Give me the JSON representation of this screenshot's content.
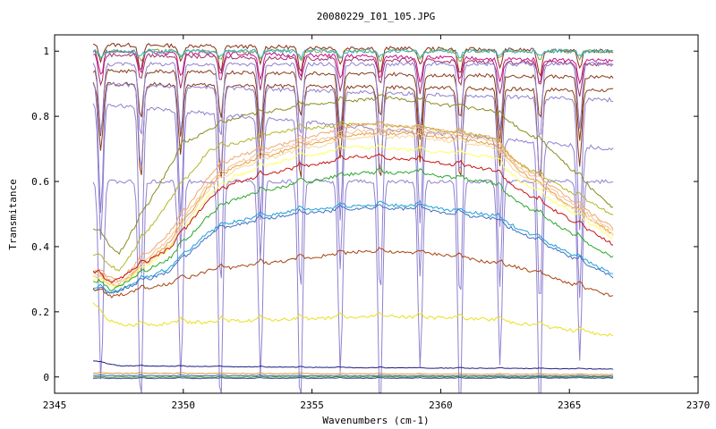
{
  "chart_data": {
    "type": "line",
    "title": "20080229_I01_105.JPG",
    "xlabel": "Wavenumbers (cm-1)",
    "ylabel": "Transmitance",
    "xlim": [
      2345,
      2370
    ],
    "ylim": [
      -0.05,
      1.05
    ],
    "x_ticks": [
      2345,
      2350,
      2355,
      2360,
      2365,
      2370
    ],
    "x_tick_labels": [
      "2345",
      "2350",
      "2355",
      "2360",
      "2365",
      "2370"
    ],
    "y_ticks": [
      0,
      0.2,
      0.4,
      0.6,
      0.8,
      1
    ],
    "y_tick_labels": [
      "0",
      "0.2",
      "0.4",
      "0.6",
      "0.8",
      "1"
    ],
    "grid": false,
    "legend": "none",
    "x_range": [
      2346.5,
      2366.7
    ],
    "series": [
      {
        "color": "#8b2e10",
        "kind": "co2",
        "base": 1.0,
        "depth": 0.08,
        "env": [
          [
            2346.5,
            1.02
          ],
          [
            2366.7,
            1.0
          ]
        ]
      },
      {
        "color": "#c8148c",
        "kind": "co2",
        "base": 0.99,
        "depth": 0.08,
        "env": [
          [
            2346.5,
            1.0
          ],
          [
            2366.7,
            0.97
          ]
        ]
      },
      {
        "color": "#a0306c",
        "kind": "co2",
        "base": 0.99,
        "depth": 0.1,
        "env": [
          [
            2346.5,
            0.99
          ],
          [
            2366.7,
            0.96
          ]
        ]
      },
      {
        "color": "#7fa24a",
        "kind": "co2",
        "base": 1.0,
        "depth": 0.03,
        "env": [
          [
            2346.5,
            1.0
          ],
          [
            2366.7,
            1.0
          ]
        ]
      },
      {
        "color": "#32b4c8",
        "kind": "co2",
        "base": 1.0,
        "depth": 0.02,
        "env": [
          [
            2346.5,
            1.0
          ],
          [
            2366.7,
            1.0
          ]
        ]
      },
      {
        "color": "#8b3a1a",
        "kind": "co2",
        "base": 0.96,
        "depth": 0.2,
        "env": [
          [
            2346.5,
            0.94
          ],
          [
            2366.7,
            0.92
          ]
        ]
      },
      {
        "color": "#8b3a1a",
        "kind": "co2",
        "base": 0.93,
        "depth": 0.3,
        "env": [
          [
            2346.5,
            0.9
          ],
          [
            2366.7,
            0.88
          ]
        ]
      },
      {
        "color": "#9080d0",
        "kind": "co2",
        "base": 0.97,
        "depth": 0.25,
        "env": [
          [
            2346.5,
            0.96
          ],
          [
            2366.7,
            0.96
          ]
        ]
      },
      {
        "color": "#9080d0",
        "kind": "co2",
        "base": 0.95,
        "depth": 0.4,
        "env": [
          [
            2346.5,
            0.9
          ],
          [
            2366.7,
            0.85
          ]
        ]
      },
      {
        "color": "#9080d0",
        "kind": "co2",
        "base": 0.92,
        "depth": 0.55,
        "env": [
          [
            2346.5,
            0.84
          ],
          [
            2366.7,
            0.7
          ]
        ]
      },
      {
        "color": "#9080d0",
        "kind": "co2",
        "base": 0.9,
        "depth": 0.75,
        "env": [
          [
            2346.5,
            0.6
          ],
          [
            2366.7,
            0.6
          ]
        ]
      },
      {
        "color": "#8a8a20",
        "kind": "env",
        "env": [
          [
            2346.5,
            0.46
          ],
          [
            2347.5,
            0.38
          ],
          [
            2350,
            0.72
          ],
          [
            2352,
            0.8
          ],
          [
            2355,
            0.84
          ],
          [
            2358,
            0.86
          ],
          [
            2362,
            0.82
          ],
          [
            2364,
            0.72
          ],
          [
            2366.7,
            0.52
          ]
        ]
      },
      {
        "color": "#b4b428",
        "kind": "env",
        "env": [
          [
            2346.5,
            0.38
          ],
          [
            2347.5,
            0.33
          ],
          [
            2349.5,
            0.55
          ],
          [
            2351,
            0.7
          ],
          [
            2354,
            0.76
          ],
          [
            2356.8,
            0.78
          ],
          [
            2359,
            0.77
          ],
          [
            2362,
            0.74
          ],
          [
            2363,
            0.66
          ],
          [
            2366.7,
            0.5
          ]
        ]
      },
      {
        "color": "#f0a870",
        "kind": "env",
        "env": [
          [
            2346.5,
            0.33
          ],
          [
            2347.5,
            0.3
          ],
          [
            2349.5,
            0.45
          ],
          [
            2351,
            0.62
          ],
          [
            2352,
            0.68
          ],
          [
            2354,
            0.72
          ],
          [
            2356.8,
            0.78
          ],
          [
            2359,
            0.77
          ],
          [
            2362,
            0.74
          ],
          [
            2363,
            0.66
          ],
          [
            2366.7,
            0.46
          ]
        ]
      },
      {
        "color": "#f4c090",
        "kind": "env",
        "env": [
          [
            2346.5,
            0.32
          ],
          [
            2347.5,
            0.29
          ],
          [
            2349.5,
            0.43
          ],
          [
            2351,
            0.6
          ],
          [
            2352,
            0.66
          ],
          [
            2354,
            0.71
          ],
          [
            2356.8,
            0.76
          ],
          [
            2359,
            0.76
          ],
          [
            2362,
            0.73
          ],
          [
            2363,
            0.65
          ],
          [
            2366.7,
            0.45
          ]
        ]
      },
      {
        "color": "#e8a040",
        "kind": "env",
        "env": [
          [
            2346.5,
            0.31
          ],
          [
            2347.5,
            0.28
          ],
          [
            2349.5,
            0.42
          ],
          [
            2351,
            0.59
          ],
          [
            2352,
            0.65
          ],
          [
            2354,
            0.7
          ],
          [
            2356.8,
            0.75
          ],
          [
            2359,
            0.75
          ],
          [
            2362,
            0.72
          ],
          [
            2363,
            0.64
          ],
          [
            2366.7,
            0.44
          ]
        ]
      },
      {
        "color": "#f7d8a0",
        "kind": "env",
        "env": [
          [
            2346.5,
            0.31
          ],
          [
            2347.5,
            0.28
          ],
          [
            2349.5,
            0.41
          ],
          [
            2351,
            0.58
          ],
          [
            2352,
            0.64
          ],
          [
            2354,
            0.69
          ],
          [
            2356.8,
            0.74
          ],
          [
            2359,
            0.74
          ],
          [
            2362,
            0.71
          ],
          [
            2363,
            0.63
          ],
          [
            2366.7,
            0.44
          ]
        ]
      },
      {
        "color": "#ffff60",
        "kind": "env",
        "env": [
          [
            2346.5,
            0.3
          ],
          [
            2347.5,
            0.28
          ],
          [
            2349.5,
            0.4
          ],
          [
            2351,
            0.56
          ],
          [
            2352,
            0.62
          ],
          [
            2354,
            0.67
          ],
          [
            2356.8,
            0.71
          ],
          [
            2359,
            0.7
          ],
          [
            2362,
            0.68
          ],
          [
            2363,
            0.61
          ],
          [
            2366.7,
            0.43
          ]
        ]
      },
      {
        "color": "#c81414",
        "kind": "env",
        "env": [
          [
            2346.5,
            0.33
          ],
          [
            2347.2,
            0.29
          ],
          [
            2349.5,
            0.4
          ],
          [
            2351,
            0.55
          ],
          [
            2352,
            0.6
          ],
          [
            2354,
            0.64
          ],
          [
            2356.8,
            0.68
          ],
          [
            2359,
            0.67
          ],
          [
            2362,
            0.64
          ],
          [
            2363,
            0.58
          ],
          [
            2366.7,
            0.41
          ]
        ]
      },
      {
        "color": "#2aa82a",
        "kind": "env",
        "env": [
          [
            2346.5,
            0.3
          ],
          [
            2347.2,
            0.27
          ],
          [
            2349.5,
            0.37
          ],
          [
            2351,
            0.5
          ],
          [
            2352,
            0.55
          ],
          [
            2354,
            0.59
          ],
          [
            2356.8,
            0.63
          ],
          [
            2359,
            0.63
          ],
          [
            2362,
            0.6
          ],
          [
            2363,
            0.54
          ],
          [
            2366.7,
            0.37
          ]
        ]
      },
      {
        "color": "#1ea0d8",
        "kind": "env",
        "env": [
          [
            2346.5,
            0.28
          ],
          [
            2347.2,
            0.26
          ],
          [
            2349.5,
            0.34
          ],
          [
            2351,
            0.45
          ],
          [
            2352,
            0.48
          ],
          [
            2354,
            0.51
          ],
          [
            2356.8,
            0.53
          ],
          [
            2359,
            0.53
          ],
          [
            2362,
            0.5
          ],
          [
            2363,
            0.46
          ],
          [
            2366.7,
            0.32
          ]
        ]
      },
      {
        "color": "#4070c0",
        "kind": "env",
        "env": [
          [
            2346.5,
            0.27
          ],
          [
            2347.2,
            0.26
          ],
          [
            2349.5,
            0.33
          ],
          [
            2351,
            0.44
          ],
          [
            2352,
            0.47
          ],
          [
            2354,
            0.5
          ],
          [
            2356.8,
            0.52
          ],
          [
            2359,
            0.52
          ],
          [
            2362,
            0.49
          ],
          [
            2363,
            0.45
          ],
          [
            2366.7,
            0.31
          ]
        ]
      },
      {
        "color": "#a84410",
        "kind": "env",
        "env": [
          [
            2346.5,
            0.27
          ],
          [
            2347.2,
            0.25
          ],
          [
            2349.5,
            0.29
          ],
          [
            2351,
            0.33
          ],
          [
            2354,
            0.36
          ],
          [
            2357,
            0.39
          ],
          [
            2360,
            0.38
          ],
          [
            2363,
            0.34
          ],
          [
            2366.7,
            0.25
          ]
        ]
      },
      {
        "color": "#e8e020",
        "kind": "env",
        "env": [
          [
            2346.5,
            0.23
          ],
          [
            2347,
            0.18
          ],
          [
            2348,
            0.16
          ],
          [
            2350,
            0.17
          ],
          [
            2354,
            0.18
          ],
          [
            2358,
            0.19
          ],
          [
            2362,
            0.18
          ],
          [
            2366.7,
            0.13
          ]
        ]
      },
      {
        "color": "#1c1c88",
        "kind": "env",
        "env": [
          [
            2346.5,
            0.05
          ],
          [
            2347.5,
            0.035
          ],
          [
            2355,
            0.03
          ],
          [
            2366.7,
            0.025
          ]
        ]
      },
      {
        "color": "#e89030",
        "kind": "env",
        "env": [
          [
            2346.5,
            0.012
          ],
          [
            2366.7,
            0.008
          ]
        ]
      },
      {
        "color": "#3070a0",
        "kind": "env",
        "env": [
          [
            2346.5,
            0.005
          ],
          [
            2366.7,
            0.003
          ]
        ]
      },
      {
        "color": "#309040",
        "kind": "env",
        "env": [
          [
            2346.5,
            0.0
          ],
          [
            2366.7,
            0.0
          ]
        ]
      },
      {
        "color": "#5050a0",
        "kind": "env",
        "env": [
          [
            2346.5,
            -0.004
          ],
          [
            2366.7,
            -0.003
          ]
        ]
      }
    ]
  }
}
